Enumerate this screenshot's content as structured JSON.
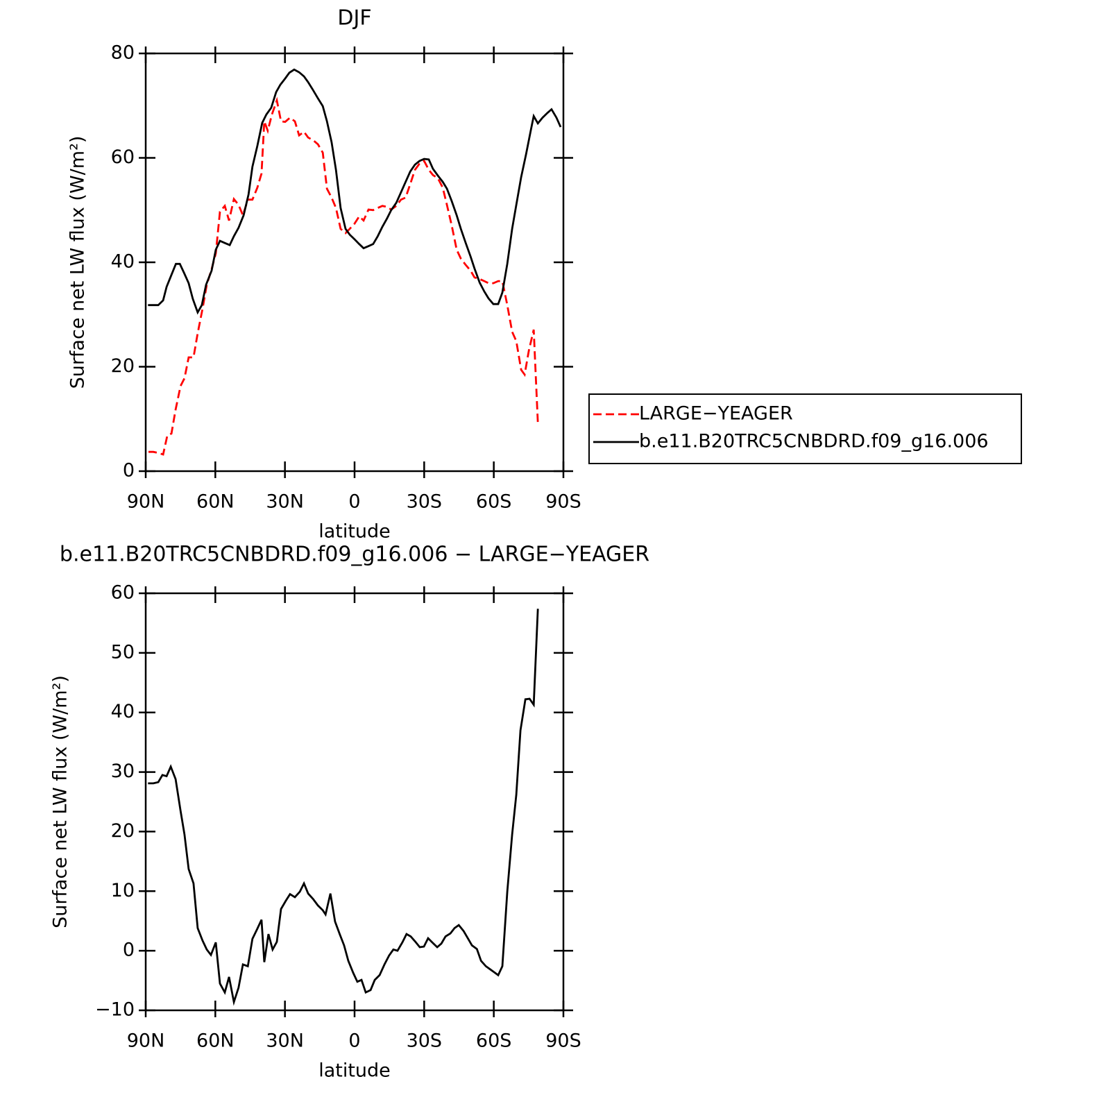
{
  "chart_data": [
    {
      "type": "line",
      "title": "DJF",
      "xlabel": "latitude",
      "ylabel": "Surface net LW flux (W/m²)",
      "xlim": [
        90,
        -90
      ],
      "xticks": [
        {
          "value": 90,
          "label": "90N"
        },
        {
          "value": 60,
          "label": "60N"
        },
        {
          "value": 30,
          "label": "30N"
        },
        0,
        {
          "value": -30,
          "label": "30S"
        },
        {
          "value": -60,
          "label": "60S"
        },
        {
          "value": -90,
          "label": "90S"
        }
      ],
      "ylim": [
        0,
        80
      ],
      "yticks": [
        0,
        20,
        40,
        60,
        80
      ],
      "legend": "right",
      "series": [
        {
          "name": "LARGE−YEAGER",
          "color": "#ff0000",
          "linestyle": "dashed",
          "x": [
            88.8,
            86.7,
            84.6,
            82.5,
            80.7,
            78.9,
            77.1,
            75,
            73.3,
            71.5,
            69.4,
            67.6,
            65.5,
            63.7,
            61.6,
            59.8,
            58,
            55.9,
            54.1,
            52,
            50,
            48.1,
            46,
            44,
            41.9,
            40.1,
            38.9,
            37.4,
            35.6,
            33.5,
            31.7,
            29.9,
            27.8,
            25.7,
            23.9,
            21.8,
            20,
            17.9,
            15.8,
            13.7,
            11.9,
            9.9,
            8,
            6,
            3.9,
            2.1,
            0,
            -2,
            -3.9,
            -6,
            -8,
            -10,
            -12,
            -14,
            -15.8,
            -18,
            -20,
            -22,
            -24,
            -26,
            -28,
            -30,
            -32,
            -33.8,
            -35.9,
            -38,
            -39.8,
            -41.9,
            -44,
            -45.8,
            -47.9,
            -50,
            -51.7,
            -53.9,
            -55.9,
            -57.7,
            -59.8,
            -61.9,
            -63.7,
            -65.8,
            -67.9,
            -69.7,
            -71.8,
            -73.3,
            -75.1,
            -77.2,
            -79
          ],
          "values": [
            3.7,
            3.7,
            3.5,
            3.2,
            6.8,
            7.2,
            11.8,
            16.3,
            17.8,
            21.8,
            21.8,
            26.4,
            31.1,
            35.7,
            38.7,
            41.7,
            49.7,
            50.8,
            48,
            52.1,
            51,
            49,
            52,
            52,
            54.3,
            57,
            67,
            65.2,
            68.3,
            71,
            67,
            66.9,
            67.7,
            67,
            64.3,
            65,
            63.9,
            63.4,
            62.6,
            61,
            54.1,
            52.4,
            50.4,
            46.4,
            45.6,
            46.4,
            47.4,
            48.8,
            48,
            50.1,
            50,
            50.4,
            50.8,
            50.6,
            50.1,
            50.8,
            52,
            52.4,
            55,
            57.7,
            58.9,
            59.4,
            57.7,
            56.7,
            56.1,
            54.3,
            51,
            47,
            42.4,
            40.7,
            39.5,
            38.4,
            37.1,
            36.8,
            36.4,
            36,
            36,
            36.4,
            36.4,
            31.8,
            26.7,
            24.9,
            19.4,
            18.5,
            23.1,
            27.1,
            9.2
          ]
        },
        {
          "name": "b.e11.B20TRC5CNBDRD.f09_g16.006",
          "color": "#000000",
          "linestyle": "solid",
          "x": [
            89,
            84.6,
            82.5,
            81,
            79,
            77,
            75.3,
            73.5,
            71.5,
            69.7,
            67.6,
            65.8,
            64,
            61.6,
            59.8,
            58,
            55.9,
            53.8,
            52,
            50,
            47.8,
            45.7,
            44,
            41.9,
            39.8,
            38,
            35.9,
            33.8,
            32,
            29.9,
            28.1,
            26,
            23.9,
            21.8,
            20,
            17.9,
            15.8,
            13.7,
            11.9,
            9.9,
            8,
            6,
            3.9,
            2.1,
            0,
            -2,
            -3.9,
            -6,
            -8,
            -10,
            -12,
            -14,
            -15.8,
            -18,
            -20,
            -22,
            -24,
            -26,
            -28,
            -30,
            -32,
            -33.8,
            -35.9,
            -38,
            -39.8,
            -41.9,
            -44,
            -45.8,
            -47.9,
            -50,
            -51.7,
            -53.9,
            -55.9,
            -57.7,
            -59.8,
            -61.9,
            -63.7,
            -65.8,
            -67.9,
            -69.7,
            -71.8,
            -73.9,
            -76,
            -77.2,
            -79,
            -81,
            -83.1,
            -84.9,
            -87,
            -88.8
          ],
          "values": [
            31.8,
            31.8,
            32.7,
            35.3,
            37.5,
            39.7,
            39.7,
            38,
            36,
            33,
            30.4,
            31.8,
            35.7,
            38.4,
            42.4,
            44.1,
            43.7,
            43.3,
            45,
            46.6,
            49,
            53,
            58.3,
            62.3,
            66.7,
            68.3,
            69.6,
            72.6,
            74,
            75.2,
            76.3,
            76.9,
            76.4,
            75.6,
            74.5,
            73,
            71.4,
            69.9,
            67,
            63,
            57.7,
            50.4,
            46.4,
            45.3,
            44.4,
            43.5,
            42.7,
            43.1,
            43.5,
            45,
            46.8,
            48.4,
            50,
            51.4,
            53.4,
            55.4,
            57.4,
            58.7,
            59.4,
            59.8,
            59.7,
            57.9,
            56.6,
            55.4,
            54.1,
            51.7,
            49,
            46.4,
            43.7,
            41.1,
            38.8,
            36.1,
            34.4,
            33.1,
            32,
            32,
            34.2,
            39.7,
            46.4,
            51,
            56.3,
            60.7,
            65.4,
            68,
            66.6,
            67.7,
            68.6,
            69.3,
            67.7,
            65.9
          ]
        }
      ]
    },
    {
      "type": "line",
      "title": "b.e11.B20TRC5CNBDRD.f09_g16.006 − LARGE−YEAGER",
      "xlabel": "latitude",
      "ylabel": "Surface net LW flux (W/m²)",
      "xlim": [
        90,
        -90
      ],
      "xticks": [
        {
          "value": 90,
          "label": "90N"
        },
        {
          "value": 60,
          "label": "60N"
        },
        {
          "value": 30,
          "label": "30N"
        },
        0,
        {
          "value": -30,
          "label": "30S"
        },
        {
          "value": -60,
          "label": "60S"
        },
        {
          "value": -90,
          "label": "90S"
        }
      ],
      "ylim": [
        -10,
        60
      ],
      "yticks": [
        {
          "value": -10,
          "label": "−10"
        },
        0,
        10,
        20,
        30,
        40,
        50,
        60
      ],
      "series": [
        {
          "color": "#000000",
          "linestyle": "solid",
          "x": [
            89,
            86.7,
            84.6,
            82.8,
            81,
            79.2,
            77.1,
            75,
            73.3,
            71.5,
            69.4,
            67.6,
            65.5,
            63.7,
            61.9,
            59.8,
            58,
            55.9,
            54.1,
            52,
            50,
            48.1,
            46,
            44,
            41.9,
            40.1,
            38.9,
            37.1,
            35.3,
            33.5,
            31.7,
            29.6,
            27.8,
            25.7,
            23.6,
            21.8,
            20,
            17.9,
            15.8,
            13.7,
            12.5,
            10.4,
            8.4,
            6.3,
            4.5,
            2.7,
            0.6,
            -1.2,
            -3,
            -4.8,
            -6.9,
            -8.7,
            -10.8,
            -12.9,
            -14.9,
            -16.7,
            -18.5,
            -20.6,
            -22.4,
            -24.2,
            -26,
            -28.1,
            -29.9,
            -31.7,
            -33.5,
            -35.6,
            -37.4,
            -39.2,
            -41.3,
            -43.1,
            -44.9,
            -47,
            -48.8,
            -50.6,
            -52.7,
            -54.5,
            -56.6,
            -58.4,
            -60.2,
            -61.9,
            -63.7,
            -65.8,
            -67.9,
            -69.7,
            -71.5,
            -73.6,
            -75.4,
            -77.2,
            -79
          ],
          "values": [
            28.1,
            28.1,
            28.3,
            29.5,
            29.3,
            30.9,
            28.8,
            23.5,
            19.5,
            13.7,
            11.3,
            3.8,
            1.7,
            0.2,
            -0.7,
            1.4,
            -5.5,
            -7,
            -4.4,
            -8.6,
            -6.2,
            -2.3,
            -2.6,
            2,
            3.7,
            5.2,
            -1.9,
            2.8,
            0.2,
            1.5,
            7,
            8.4,
            9.5,
            9,
            9.9,
            11.3,
            9.6,
            8.7,
            7.6,
            6.8,
            6.1,
            9.6,
            4.9,
            2.7,
            0.9,
            -1.7,
            -3.7,
            -5.2,
            -4.9,
            -7,
            -6.6,
            -4.9,
            -4.1,
            -2.3,
            -0.8,
            0.2,
            0,
            1.4,
            2.8,
            2.4,
            1.6,
            0.6,
            0.7,
            2.1,
            1.4,
            0.6,
            1.2,
            2.4,
            2.9,
            3.8,
            4.3,
            3.3,
            2.1,
            0.9,
            0.3,
            -1.7,
            -2.6,
            -3.1,
            -3.6,
            -4.1,
            -2.6,
            9.9,
            19.5,
            26.2,
            37,
            42.2,
            42.3,
            41.3,
            57.4
          ]
        }
      ]
    }
  ]
}
